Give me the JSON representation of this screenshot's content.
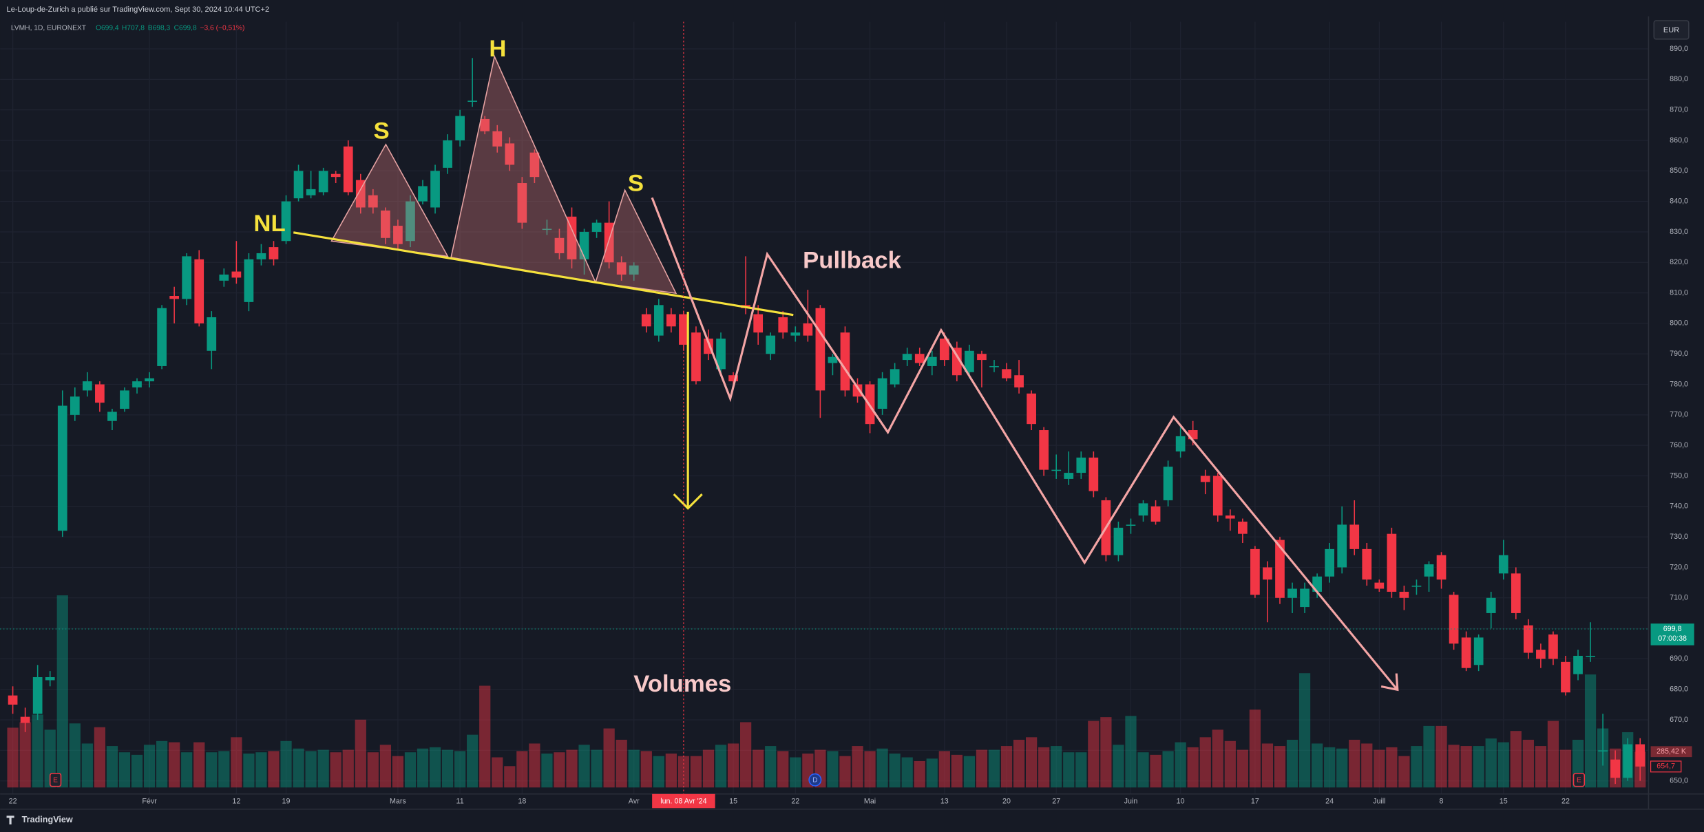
{
  "header": {
    "publisher": "Le-Loup-de-Zurich a publié sur TradingView.com, Sept 30, 2024 10:44 UTC+2"
  },
  "footer": {
    "brand": "TradingView"
  },
  "currency_button": "EUR",
  "chart_data": {
    "type": "candlestick",
    "symbol": "LVMH, 1D, EURONEXT",
    "ohlc_legend": [
      "O699,4",
      "H707,8",
      "B698,3",
      "C699,8",
      "−3,6 (−0,51%)"
    ],
    "colors": {
      "up": "#089981",
      "down": "#f23645"
    },
    "candles": [
      [
        678,
        681,
        672,
        675
      ],
      [
        671,
        674,
        666,
        669
      ],
      [
        672,
        688,
        670,
        684
      ],
      [
        683,
        686,
        681,
        684
      ],
      [
        732,
        778,
        730,
        773
      ],
      [
        770,
        779,
        768,
        776
      ],
      [
        778,
        784,
        776,
        781
      ],
      [
        780,
        781,
        771,
        774
      ],
      [
        768,
        772,
        765,
        771
      ],
      [
        772,
        779,
        771,
        778
      ],
      [
        779,
        782,
        777,
        781
      ],
      [
        781,
        784,
        779,
        782
      ],
      [
        786,
        806,
        785,
        805
      ],
      [
        809,
        812,
        800,
        808
      ],
      [
        808,
        823,
        806,
        822
      ],
      [
        821,
        824,
        799,
        800
      ],
      [
        791,
        804,
        785,
        802
      ],
      [
        814,
        818,
        812,
        816
      ],
      [
        817,
        827,
        813,
        815
      ],
      [
        807,
        823,
        804,
        821
      ],
      [
        821,
        826,
        819,
        823
      ],
      [
        825,
        827,
        819,
        821
      ],
      [
        827,
        842,
        826,
        840
      ],
      [
        841,
        852,
        840,
        850
      ],
      [
        842,
        850,
        841,
        844
      ],
      [
        843,
        851,
        842,
        850
      ],
      [
        849,
        850,
        846,
        848
      ],
      [
        858,
        860,
        842,
        843
      ],
      [
        847,
        849,
        836,
        838
      ],
      [
        842,
        844,
        836,
        838
      ],
      [
        837,
        838,
        826,
        828
      ],
      [
        832,
        834,
        824,
        826
      ],
      [
        827,
        842,
        825,
        840
      ],
      [
        840,
        847,
        839,
        845
      ],
      [
        838,
        852,
        836,
        850
      ],
      [
        851,
        862,
        849,
        860
      ],
      [
        860,
        870,
        858,
        868
      ],
      [
        873,
        887,
        871,
        873
      ],
      [
        867,
        868,
        862,
        863
      ],
      [
        863,
        865,
        856,
        858
      ],
      [
        859,
        861,
        850,
        852
      ],
      [
        846,
        848,
        831,
        833
      ],
      [
        856,
        857,
        846,
        848
      ],
      [
        831,
        834,
        829,
        831
      ],
      [
        828,
        831,
        821,
        823
      ],
      [
        835,
        838,
        818,
        821
      ],
      [
        821,
        831,
        816,
        830
      ],
      [
        830,
        834,
        828,
        833
      ],
      [
        833,
        840,
        818,
        820
      ],
      [
        820,
        822,
        814,
        816
      ],
      [
        816,
        820,
        814,
        819
      ],
      [
        803,
        805,
        797,
        799
      ],
      [
        796,
        808,
        794,
        806
      ],
      [
        803,
        805,
        797,
        799
      ],
      [
        803,
        804,
        791,
        793
      ],
      [
        797,
        799,
        780,
        781
      ],
      [
        795,
        798,
        788,
        790
      ],
      [
        785,
        797,
        783,
        795
      ],
      [
        783,
        784,
        780,
        781
      ],
      [
        806,
        822,
        803,
        805
      ],
      [
        803,
        806,
        793,
        797
      ],
      [
        790,
        797,
        788,
        796
      ],
      [
        802,
        804,
        795,
        797
      ],
      [
        796,
        799,
        794,
        797
      ],
      [
        800,
        811,
        794,
        796
      ],
      [
        805,
        806,
        769,
        778
      ],
      [
        787,
        790,
        783,
        789
      ],
      [
        797,
        799,
        776,
        778
      ],
      [
        780,
        782,
        774,
        776
      ],
      [
        780,
        781,
        764,
        767
      ],
      [
        772,
        784,
        770,
        782
      ],
      [
        780,
        787,
        779,
        785
      ],
      [
        788,
        792,
        786,
        790
      ],
      [
        790,
        792,
        786,
        787
      ],
      [
        786,
        791,
        783,
        789
      ],
      [
        795,
        797,
        786,
        788
      ],
      [
        792,
        794,
        781,
        783
      ],
      [
        784,
        793,
        782,
        791
      ],
      [
        790,
        791,
        779,
        788
      ],
      [
        786,
        788,
        784,
        786
      ],
      [
        785,
        787,
        781,
        782
      ],
      [
        783,
        788,
        777,
        779
      ],
      [
        777,
        778,
        765,
        767
      ],
      [
        765,
        766,
        750,
        752
      ],
      [
        752,
        757,
        749,
        752
      ],
      [
        749,
        758,
        747,
        751
      ],
      [
        751,
        758,
        749,
        756
      ],
      [
        756,
        758,
        743,
        745
      ],
      [
        742,
        743,
        722,
        724
      ],
      [
        724,
        735,
        722,
        733
      ],
      [
        734,
        736,
        731,
        734
      ],
      [
        737,
        742,
        735,
        741
      ],
      [
        740,
        742,
        734,
        735
      ],
      [
        742,
        755,
        740,
        753
      ],
      [
        758,
        766,
        756,
        763
      ],
      [
        765,
        768,
        760,
        762
      ],
      [
        750,
        752,
        744,
        748
      ],
      [
        750,
        751,
        735,
        737
      ],
      [
        737,
        739,
        732,
        736
      ],
      [
        735,
        736,
        728,
        731
      ],
      [
        726,
        727,
        710,
        711
      ],
      [
        720,
        722,
        702,
        716
      ],
      [
        729,
        730,
        708,
        710
      ],
      [
        710,
        715,
        705,
        713
      ],
      [
        707,
        715,
        705,
        713
      ],
      [
        712,
        718,
        710,
        717
      ],
      [
        717,
        728,
        715,
        726
      ],
      [
        720,
        740,
        718,
        734
      ],
      [
        734,
        742,
        724,
        726
      ],
      [
        726,
        728,
        714,
        716
      ],
      [
        715,
        716,
        712,
        713
      ],
      [
        731,
        733,
        710,
        712
      ],
      [
        712,
        714,
        706,
        710
      ],
      [
        714,
        716,
        711,
        714
      ],
      [
        717,
        722,
        712,
        721
      ],
      [
        724,
        725,
        713,
        716
      ],
      [
        711,
        712,
        693,
        695
      ],
      [
        697,
        699,
        686,
        687
      ],
      [
        688,
        698,
        686,
        697
      ],
      [
        705,
        712,
        700,
        710
      ],
      [
        718,
        729,
        716,
        724
      ],
      [
        718,
        720,
        703,
        705
      ],
      [
        701,
        703,
        690,
        692
      ],
      [
        693,
        695,
        687,
        690
      ],
      [
        698,
        699,
        688,
        690
      ],
      [
        689,
        691,
        678,
        679
      ],
      [
        685,
        693,
        683,
        691
      ],
      [
        691,
        702,
        689,
        691
      ],
      [
        660,
        672,
        655,
        660
      ],
      [
        657,
        660,
        649,
        651
      ],
      [
        651,
        664,
        650,
        662
      ],
      [
        662,
        664,
        650,
        654.7
      ]
    ],
    "volumes": [
      476000,
      519000,
      580000,
      460000,
      1530000,
      510000,
      350000,
      480000,
      330000,
      280000,
      260000,
      340000,
      370000,
      360000,
      280000,
      360000,
      280000,
      290000,
      400000,
      270000,
      280000,
      290000,
      370000,
      310000,
      290000,
      300000,
      280000,
      300000,
      540000,
      280000,
      340000,
      250000,
      280000,
      310000,
      320000,
      300000,
      290000,
      420000,
      810000,
      240000,
      170000,
      290000,
      350000,
      270000,
      280000,
      300000,
      340000,
      300000,
      470000,
      380000,
      300000,
      290000,
      250000,
      270000,
      250000,
      250000,
      300000,
      340000,
      350000,
      520000,
      300000,
      330000,
      290000,
      240000,
      270000,
      300000,
      290000,
      250000,
      330000,
      290000,
      310000,
      270000,
      240000,
      210000,
      230000,
      290000,
      260000,
      250000,
      300000,
      300000,
      330000,
      380000,
      400000,
      320000,
      330000,
      280000,
      280000,
      530000,
      560000,
      340000,
      570000,
      280000,
      260000,
      290000,
      360000,
      320000,
      400000,
      460000,
      370000,
      300000,
      620000,
      350000,
      330000,
      380000,
      910000,
      350000,
      320000,
      310000,
      380000,
      350000,
      300000,
      320000,
      250000,
      330000,
      490000,
      490000,
      340000,
      330000,
      330000,
      390000,
      360000,
      450000,
      380000,
      330000,
      530000,
      300000,
      380000,
      900000,
      470000,
      310000,
      440000,
      285420
    ],
    "xlim": [
      -0.5,
      131.5
    ],
    "xticks": [
      {
        "value": 0,
        "label": "22"
      },
      {
        "value": 11,
        "label": "Févr"
      },
      {
        "value": 18,
        "label": "12"
      },
      {
        "value": 22,
        "label": "19"
      },
      {
        "value": 31,
        "label": "Mars"
      },
      {
        "value": 36,
        "label": "11"
      },
      {
        "value": 41,
        "label": "18"
      },
      {
        "value": 50,
        "label": "Avr"
      },
      {
        "value": 58,
        "label": "15"
      },
      {
        "value": 63,
        "label": "22"
      },
      {
        "value": 69,
        "label": "Mai"
      },
      {
        "value": 75,
        "label": "13"
      },
      {
        "value": 80,
        "label": "20"
      },
      {
        "value": 84,
        "label": "27"
      },
      {
        "value": 90,
        "label": "Juin"
      },
      {
        "value": 94,
        "label": "10"
      },
      {
        "value": 100,
        "label": "17"
      },
      {
        "value": 106,
        "label": "24"
      },
      {
        "value": 110,
        "label": "Juill"
      },
      {
        "value": 115,
        "label": "8"
      },
      {
        "value": 120,
        "label": "15"
      },
      {
        "value": 125,
        "label": "22"
      }
    ],
    "crosshair": {
      "value": 54,
      "label": "lun. 08 Avr '24"
    },
    "ylim": [
      645.7,
      898.9
    ],
    "yticks": [
      {
        "value": 650,
        "label": "650,0"
      },
      {
        "value": 660,
        "label": "660,0"
      },
      {
        "value": 670,
        "label": "670,0"
      },
      {
        "value": 680,
        "label": "680,0"
      },
      {
        "value": 690,
        "label": "690,0"
      },
      {
        "value": 700,
        "label": "700,0"
      },
      {
        "value": 710,
        "label": "710,0"
      },
      {
        "value": 720,
        "label": "720,0"
      },
      {
        "value": 730,
        "label": "730,0"
      },
      {
        "value": 740,
        "label": "740,0"
      },
      {
        "value": 750,
        "label": "750,0"
      },
      {
        "value": 760,
        "label": "760,0"
      },
      {
        "value": 770,
        "label": "770,0"
      },
      {
        "value": 780,
        "label": "780,0"
      },
      {
        "value": 790,
        "label": "790,0"
      },
      {
        "value": 800,
        "label": "800,0"
      },
      {
        "value": 810,
        "label": "810,0"
      },
      {
        "value": 820,
        "label": "820,0"
      },
      {
        "value": 830,
        "label": "830,0"
      },
      {
        "value": 840,
        "label": "840,0"
      },
      {
        "value": 850,
        "label": "850,0"
      },
      {
        "value": 860,
        "label": "860,0"
      },
      {
        "value": 870,
        "label": "870,0"
      },
      {
        "value": 880,
        "label": "880,0"
      },
      {
        "value": 890,
        "label": "890,0"
      }
    ],
    "grid": true,
    "price_labels": {
      "current": {
        "value": 699.8,
        "label": "699,8",
        "countdown": "07:00:38"
      },
      "last_volume": {
        "value": 285420,
        "label": "285,42 K"
      },
      "last_close": {
        "value": 654.7,
        "label": "654,7"
      }
    },
    "annotations": [
      "H",
      "S",
      "S",
      "NL",
      "Pullback",
      "Volumes"
    ],
    "events": [
      "E",
      "D",
      "E"
    ]
  }
}
